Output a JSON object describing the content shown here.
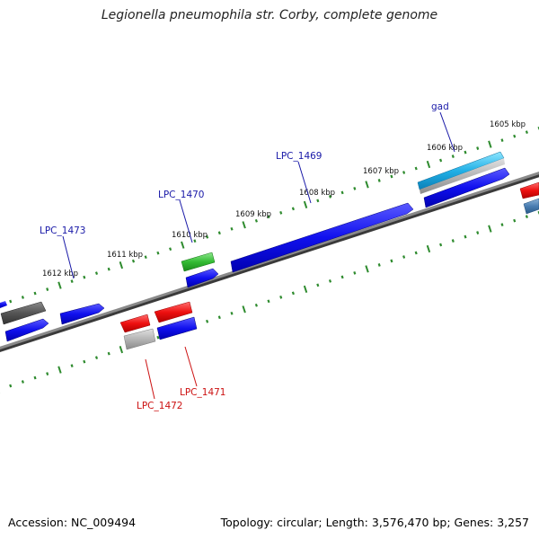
{
  "title": "Legionella pneumophila str. Corby, complete genome",
  "footer": {
    "accession": "Accession: NC_009494",
    "topology": "Topology: circular; Length: 3,576,470 bp; Genes: 3,257"
  },
  "colors": {
    "backbone": "#7a7a7a",
    "tick": "#2e8b2e",
    "forward_label": "#1a1aa8",
    "reverse_label": "#cc1111"
  },
  "scale_labels": [
    "1605 kbp",
    "1606 kbp",
    "1607 kbp",
    "1608 kbp",
    "1609 kbp",
    "1610 kbp",
    "1611 kbp",
    "1612 kbp"
  ],
  "gene_labels": [
    {
      "name": "gad",
      "strand": "forward"
    },
    {
      "name": "LPC_1469",
      "strand": "forward"
    },
    {
      "name": "LPC_1470",
      "strand": "forward"
    },
    {
      "name": "LPC_1473",
      "strand": "forward"
    },
    {
      "name": "LPC_1471",
      "strand": "reverse"
    },
    {
      "name": "LPC_1472",
      "strand": "reverse"
    }
  ]
}
